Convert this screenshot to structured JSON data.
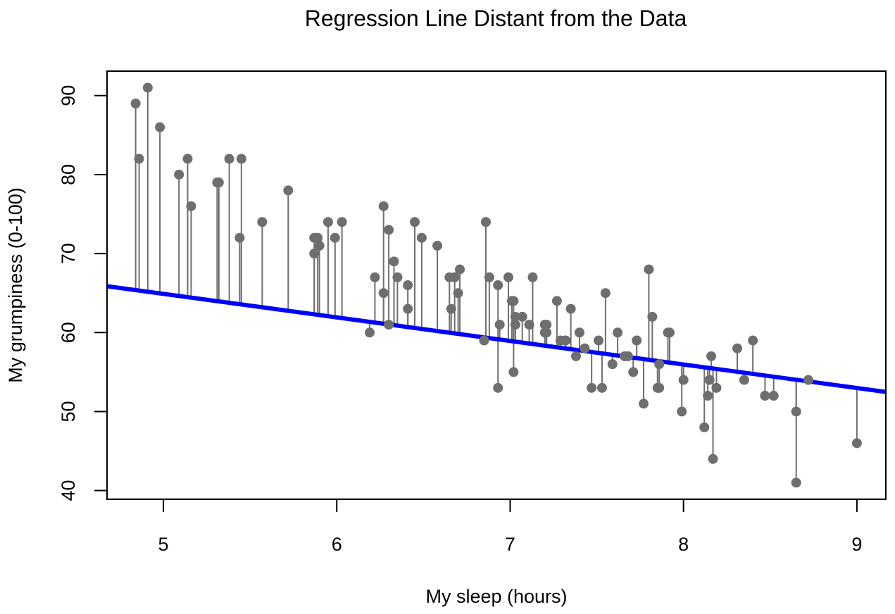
{
  "chart_data": {
    "type": "scatter",
    "title": "Regression Line Distant from the Data",
    "xlabel": "My sleep (hours)",
    "ylabel": "My grumpiness (0-100)",
    "xlim": [
      4.675,
      9.167
    ],
    "ylim": [
      38.9,
      93.1
    ],
    "xticks": [
      5,
      6,
      7,
      8,
      9
    ],
    "yticks": [
      40,
      50,
      60,
      70,
      80,
      90
    ],
    "grid": false,
    "legend": "none",
    "colors": {
      "points": "#6e6e6e",
      "residuals": "#6e6e6e",
      "regression_line": "#0000ff",
      "axes": "#000000"
    },
    "regression_line": {
      "intercept": 79.8,
      "slope": -2.98
    },
    "points": [
      {
        "x": 4.84,
        "y": 89
      },
      {
        "x": 4.86,
        "y": 82
      },
      {
        "x": 4.91,
        "y": 91
      },
      {
        "x": 4.98,
        "y": 86
      },
      {
        "x": 5.09,
        "y": 80
      },
      {
        "x": 5.14,
        "y": 82
      },
      {
        "x": 5.16,
        "y": 76
      },
      {
        "x": 5.31,
        "y": 79
      },
      {
        "x": 5.32,
        "y": 79
      },
      {
        "x": 5.38,
        "y": 82
      },
      {
        "x": 5.44,
        "y": 72
      },
      {
        "x": 5.45,
        "y": 82
      },
      {
        "x": 5.57,
        "y": 74
      },
      {
        "x": 5.72,
        "y": 78
      },
      {
        "x": 5.87,
        "y": 72
      },
      {
        "x": 5.87,
        "y": 70
      },
      {
        "x": 5.89,
        "y": 72
      },
      {
        "x": 5.9,
        "y": 71
      },
      {
        "x": 5.95,
        "y": 74
      },
      {
        "x": 5.99,
        "y": 72
      },
      {
        "x": 6.03,
        "y": 74
      },
      {
        "x": 6.19,
        "y": 60
      },
      {
        "x": 6.22,
        "y": 67
      },
      {
        "x": 6.27,
        "y": 76
      },
      {
        "x": 6.27,
        "y": 65
      },
      {
        "x": 6.3,
        "y": 73
      },
      {
        "x": 6.3,
        "y": 61
      },
      {
        "x": 6.33,
        "y": 69
      },
      {
        "x": 6.35,
        "y": 67
      },
      {
        "x": 6.41,
        "y": 66
      },
      {
        "x": 6.41,
        "y": 63
      },
      {
        "x": 6.45,
        "y": 74
      },
      {
        "x": 6.49,
        "y": 72
      },
      {
        "x": 6.58,
        "y": 71
      },
      {
        "x": 6.65,
        "y": 67
      },
      {
        "x": 6.66,
        "y": 63
      },
      {
        "x": 6.68,
        "y": 67
      },
      {
        "x": 6.7,
        "y": 65
      },
      {
        "x": 6.71,
        "y": 68
      },
      {
        "x": 6.85,
        "y": 59
      },
      {
        "x": 6.86,
        "y": 74
      },
      {
        "x": 6.88,
        "y": 67
      },
      {
        "x": 6.93,
        "y": 66
      },
      {
        "x": 6.93,
        "y": 53
      },
      {
        "x": 6.94,
        "y": 61
      },
      {
        "x": 6.99,
        "y": 67
      },
      {
        "x": 7.01,
        "y": 64
      },
      {
        "x": 7.02,
        "y": 64
      },
      {
        "x": 7.02,
        "y": 55
      },
      {
        "x": 7.03,
        "y": 62
      },
      {
        "x": 7.03,
        "y": 61
      },
      {
        "x": 7.07,
        "y": 62
      },
      {
        "x": 7.11,
        "y": 61
      },
      {
        "x": 7.13,
        "y": 67
      },
      {
        "x": 7.2,
        "y": 61
      },
      {
        "x": 7.2,
        "y": 60
      },
      {
        "x": 7.21,
        "y": 61
      },
      {
        "x": 7.21,
        "y": 60
      },
      {
        "x": 7.27,
        "y": 64
      },
      {
        "x": 7.29,
        "y": 59
      },
      {
        "x": 7.32,
        "y": 59
      },
      {
        "x": 7.35,
        "y": 63
      },
      {
        "x": 7.38,
        "y": 57
      },
      {
        "x": 7.4,
        "y": 60
      },
      {
        "x": 7.43,
        "y": 58
      },
      {
        "x": 7.47,
        "y": 53
      },
      {
        "x": 7.51,
        "y": 59
      },
      {
        "x": 7.53,
        "y": 53
      },
      {
        "x": 7.55,
        "y": 65
      },
      {
        "x": 7.59,
        "y": 56
      },
      {
        "x": 7.62,
        "y": 60
      },
      {
        "x": 7.66,
        "y": 57
      },
      {
        "x": 7.68,
        "y": 57
      },
      {
        "x": 7.71,
        "y": 55
      },
      {
        "x": 7.73,
        "y": 59
      },
      {
        "x": 7.77,
        "y": 51
      },
      {
        "x": 7.8,
        "y": 68
      },
      {
        "x": 7.82,
        "y": 62
      },
      {
        "x": 7.85,
        "y": 53
      },
      {
        "x": 7.86,
        "y": 56
      },
      {
        "x": 7.86,
        "y": 53
      },
      {
        "x": 7.91,
        "y": 60
      },
      {
        "x": 7.92,
        "y": 60
      },
      {
        "x": 7.99,
        "y": 50
      },
      {
        "x": 8.0,
        "y": 54
      },
      {
        "x": 8.12,
        "y": 48
      },
      {
        "x": 8.14,
        "y": 52
      },
      {
        "x": 8.15,
        "y": 54
      },
      {
        "x": 8.16,
        "y": 57
      },
      {
        "x": 8.17,
        "y": 44
      },
      {
        "x": 8.19,
        "y": 53
      },
      {
        "x": 8.31,
        "y": 58
      },
      {
        "x": 8.35,
        "y": 54
      },
      {
        "x": 8.4,
        "y": 59
      },
      {
        "x": 8.47,
        "y": 52
      },
      {
        "x": 8.52,
        "y": 52
      },
      {
        "x": 8.65,
        "y": 50
      },
      {
        "x": 8.65,
        "y": 41
      },
      {
        "x": 8.72,
        "y": 54
      },
      {
        "x": 9.0,
        "y": 46
      }
    ]
  }
}
